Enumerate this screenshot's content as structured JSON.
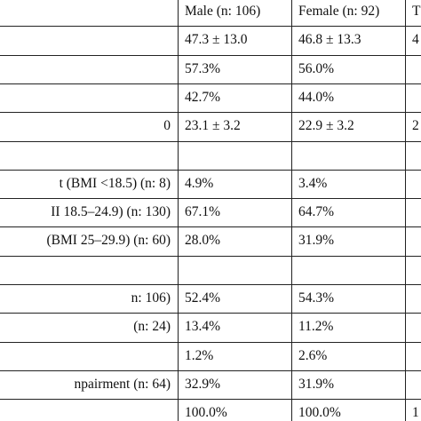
{
  "table": {
    "header": [
      null,
      "Male (n: 106)",
      "Female (n: 92)",
      "T"
    ],
    "rows": [
      [
        null,
        "47.3 ± 13.0",
        "46.8 ± 13.3",
        "4"
      ],
      [
        null,
        "57.3%",
        "56.0%",
        null
      ],
      [
        null,
        "42.7%",
        "44.0%",
        null
      ],
      [
        "0",
        "23.1 ± 3.2",
        "22.9 ± 3.2",
        "2"
      ],
      [
        null,
        null,
        null,
        null
      ],
      [
        "t (BMI <18.5) (n: 8)",
        "4.9%",
        "3.4%",
        null
      ],
      [
        "II 18.5–24.9) (n: 130)",
        "67.1%",
        "64.7%",
        null
      ],
      [
        "(BMI 25–29.9) (n: 60)",
        "28.0%",
        "31.9%",
        null
      ],
      [
        null,
        null,
        null,
        null
      ],
      [
        "n: 106)",
        "52.4%",
        "54.3%",
        null
      ],
      [
        "(n: 24)",
        "13.4%",
        "11.2%",
        null
      ],
      [
        null,
        "1.2%",
        "2.6%",
        null
      ],
      [
        "npairment (n: 64)",
        "32.9%",
        "31.9%",
        null
      ],
      [
        null,
        "100.0%",
        "100.0%",
        "1"
      ]
    ]
  }
}
